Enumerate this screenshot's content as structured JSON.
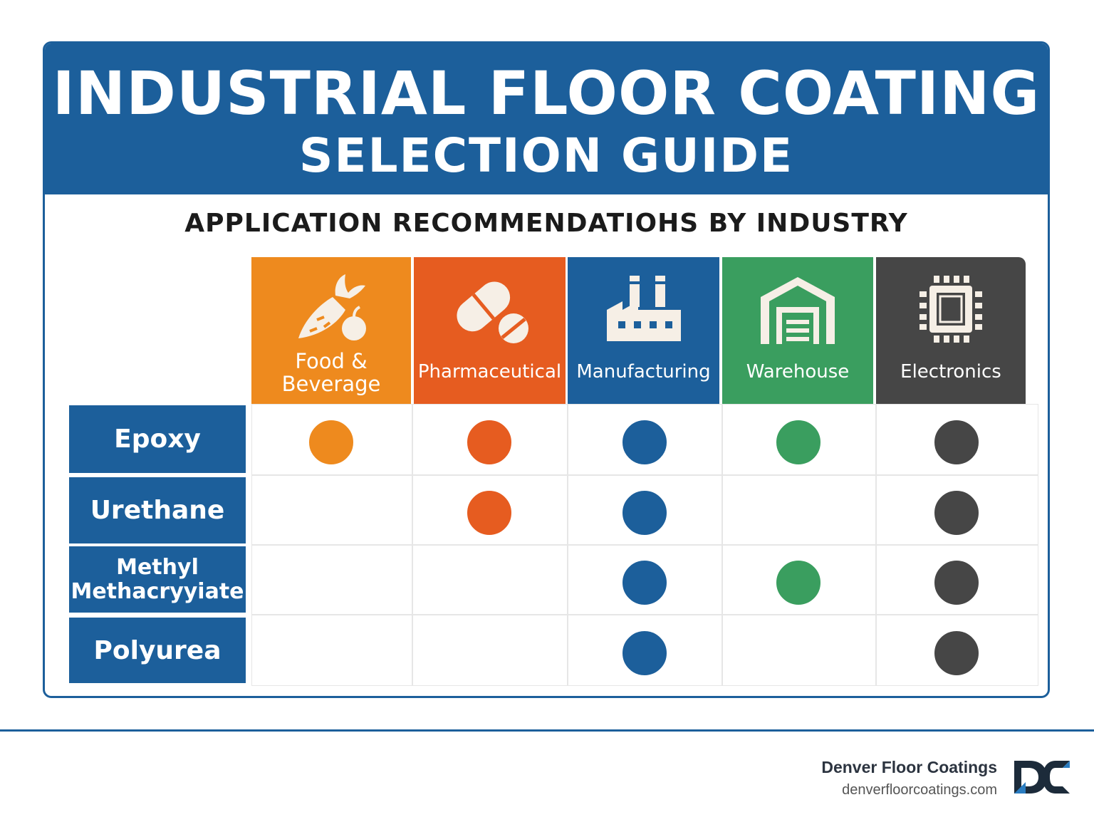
{
  "title_line1": "INDUSTRIAL FLOOR COATING",
  "title_line2": "SELECTION GUIDE",
  "subtitle": "APPLICATION RECOMMENDATIOHS BY INDUSTRY",
  "industries": [
    {
      "label": "Food &\nBeverage",
      "icon": "carrot-apple-icon",
      "color": "#ee8a1e"
    },
    {
      "label": "Pharmaceutical",
      "icon": "pill-icon",
      "color": "#e65c20"
    },
    {
      "label": "Manufacturing",
      "icon": "factory-icon",
      "color": "#1c5f9b"
    },
    {
      "label": "Warehouse",
      "icon": "warehouse-icon",
      "color": "#3a9e5f"
    },
    {
      "label": "Electronics",
      "icon": "microchip-icon",
      "color": "#464646"
    }
  ],
  "coatings": [
    {
      "label": "Epoxy",
      "recommended": [
        true,
        true,
        true,
        true,
        true
      ]
    },
    {
      "label": "Urethane",
      "recommended": [
        false,
        true,
        true,
        false,
        true
      ]
    },
    {
      "label": "Methyl\nMethacryyiate",
      "recommended": [
        false,
        false,
        true,
        true,
        true
      ]
    },
    {
      "label": "Polyurea",
      "recommended": [
        false,
        false,
        true,
        false,
        true
      ]
    }
  ],
  "brand": {
    "name": "Denver Floor Coatings",
    "url": "denverfloorcoatings.com",
    "logo_text": "DC",
    "logo_color_dark": "#1c2b3a",
    "logo_color_accent": "#2a7cc0"
  }
}
